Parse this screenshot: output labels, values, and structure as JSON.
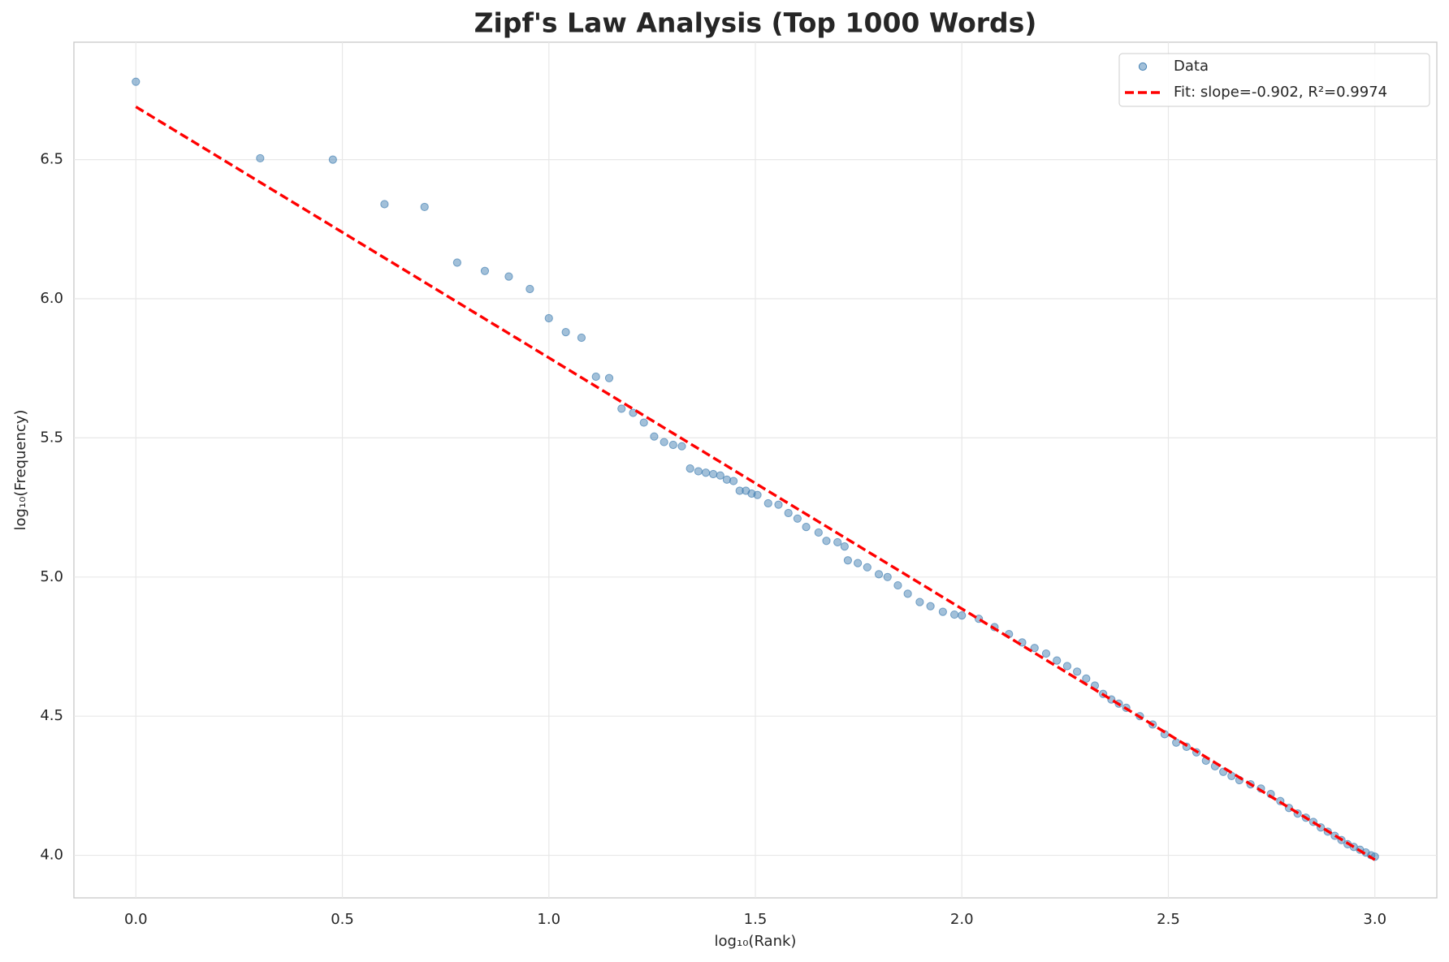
{
  "chart_data": {
    "type": "scatter",
    "title": "Zipf's Law Analysis (Top 1000 Words)",
    "x_label": "log₁₀(Rank)",
    "y_label": "log₁₀(Frequency)",
    "xlim": [
      -0.15,
      3.15
    ],
    "ylim": [
      3.847,
      6.922
    ],
    "xticks": [
      {
        "value": 0,
        "label": "0.0"
      },
      0.5,
      {
        "value": 1,
        "label": "1.0"
      },
      1.5,
      {
        "value": 2,
        "label": "2.0"
      },
      2.5,
      {
        "value": 3,
        "label": "3.0"
      }
    ],
    "yticks": [
      {
        "value": 4,
        "label": "4.0"
      },
      4.5,
      {
        "value": 5,
        "label": "5.0"
      },
      5.5,
      {
        "value": 6,
        "label": "6.0"
      },
      6.5
    ],
    "grid": true,
    "legend": "upper right",
    "series": [
      {
        "name": "Data",
        "type": "scatter",
        "color": "#4682b4",
        "x": [
          0,
          0.301,
          0.477,
          0.602,
          0.699,
          0.778,
          0.845,
          0.903,
          0.954,
          1.0,
          1.041,
          1.079,
          1.114,
          1.146,
          1.176,
          1.204,
          1.23,
          1.255,
          1.279,
          1.301,
          1.322,
          1.342,
          1.362,
          1.38,
          1.398,
          1.415,
          1.431,
          1.447,
          1.462,
          1.477,
          1.491,
          1.505,
          1.531,
          1.556,
          1.58,
          1.602,
          1.623,
          1.653,
          1.672,
          1.699,
          1.716,
          1.724,
          1.748,
          1.771,
          1.799,
          1.82,
          1.845,
          1.869,
          1.898,
          1.924,
          1.954,
          1.982,
          2.0,
          2.041,
          2.079,
          2.114,
          2.146,
          2.176,
          2.204,
          2.23,
          2.255,
          2.279,
          2.301,
          2.322,
          2.342,
          2.362,
          2.38,
          2.398,
          2.431,
          2.462,
          2.491,
          2.519,
          2.544,
          2.568,
          2.591,
          2.613,
          2.633,
          2.653,
          2.672,
          2.699,
          2.724,
          2.748,
          2.771,
          2.792,
          2.813,
          2.833,
          2.851,
          2.869,
          2.886,
          2.903,
          2.919,
          2.934,
          2.949,
          2.964,
          2.978,
          2.991,
          3.0
        ],
        "values": [
          6.78,
          6.505,
          6.5,
          6.34,
          6.33,
          6.13,
          6.1,
          6.08,
          6.035,
          5.93,
          5.88,
          5.86,
          5.72,
          5.715,
          5.605,
          5.59,
          5.555,
          5.505,
          5.485,
          5.475,
          5.47,
          5.39,
          5.38,
          5.375,
          5.37,
          5.365,
          5.35,
          5.345,
          5.31,
          5.31,
          5.3,
          5.295,
          5.265,
          5.26,
          5.23,
          5.21,
          5.18,
          5.16,
          5.13,
          5.125,
          5.11,
          5.06,
          5.05,
          5.035,
          5.01,
          5.0,
          4.97,
          4.94,
          4.91,
          4.895,
          4.875,
          4.865,
          4.862,
          4.85,
          4.82,
          4.795,
          4.765,
          4.745,
          4.725,
          4.7,
          4.68,
          4.66,
          4.635,
          4.61,
          4.58,
          4.56,
          4.545,
          4.53,
          4.5,
          4.47,
          4.435,
          4.405,
          4.39,
          4.37,
          4.34,
          4.32,
          4.3,
          4.285,
          4.27,
          4.255,
          4.24,
          4.22,
          4.195,
          4.17,
          4.15,
          4.135,
          4.12,
          4.1,
          4.085,
          4.07,
          4.055,
          4.04,
          4.03,
          4.02,
          4.01,
          4.0,
          3.995
        ]
      },
      {
        "name": "Fit: slope=-0.902, R²=0.9974",
        "type": "line",
        "color": "#ff0000",
        "dashed": true,
        "x": [
          0,
          3
        ],
        "values": [
          6.69,
          3.984
        ]
      }
    ]
  }
}
